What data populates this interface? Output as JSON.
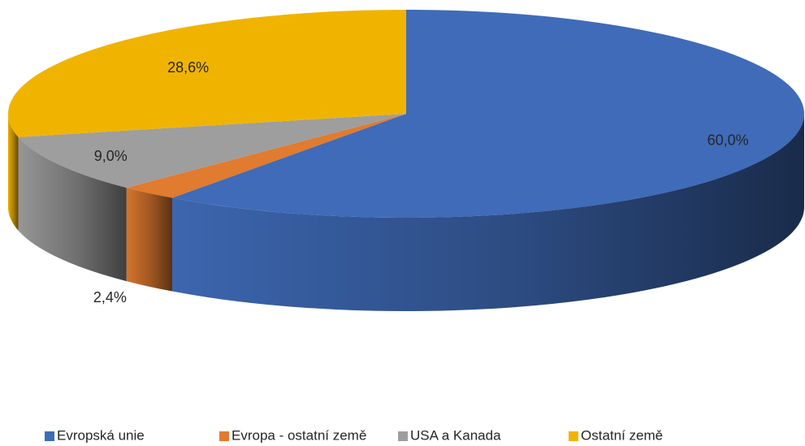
{
  "chart_data": {
    "type": "pie3d",
    "categories": [
      "Evropská unie",
      "Evropa - ostatní země",
      "USA a Kanada",
      "Ostatní země"
    ],
    "values": [
      60.0,
      2.4,
      9.0,
      28.6
    ],
    "value_labels": [
      "60,0%",
      "2,4%",
      "9,0%",
      "28,6%"
    ],
    "colors": [
      "#3f6bb8",
      "#e07b2f",
      "#9e9e9e",
      "#f0b400"
    ],
    "legend": "bottom"
  }
}
